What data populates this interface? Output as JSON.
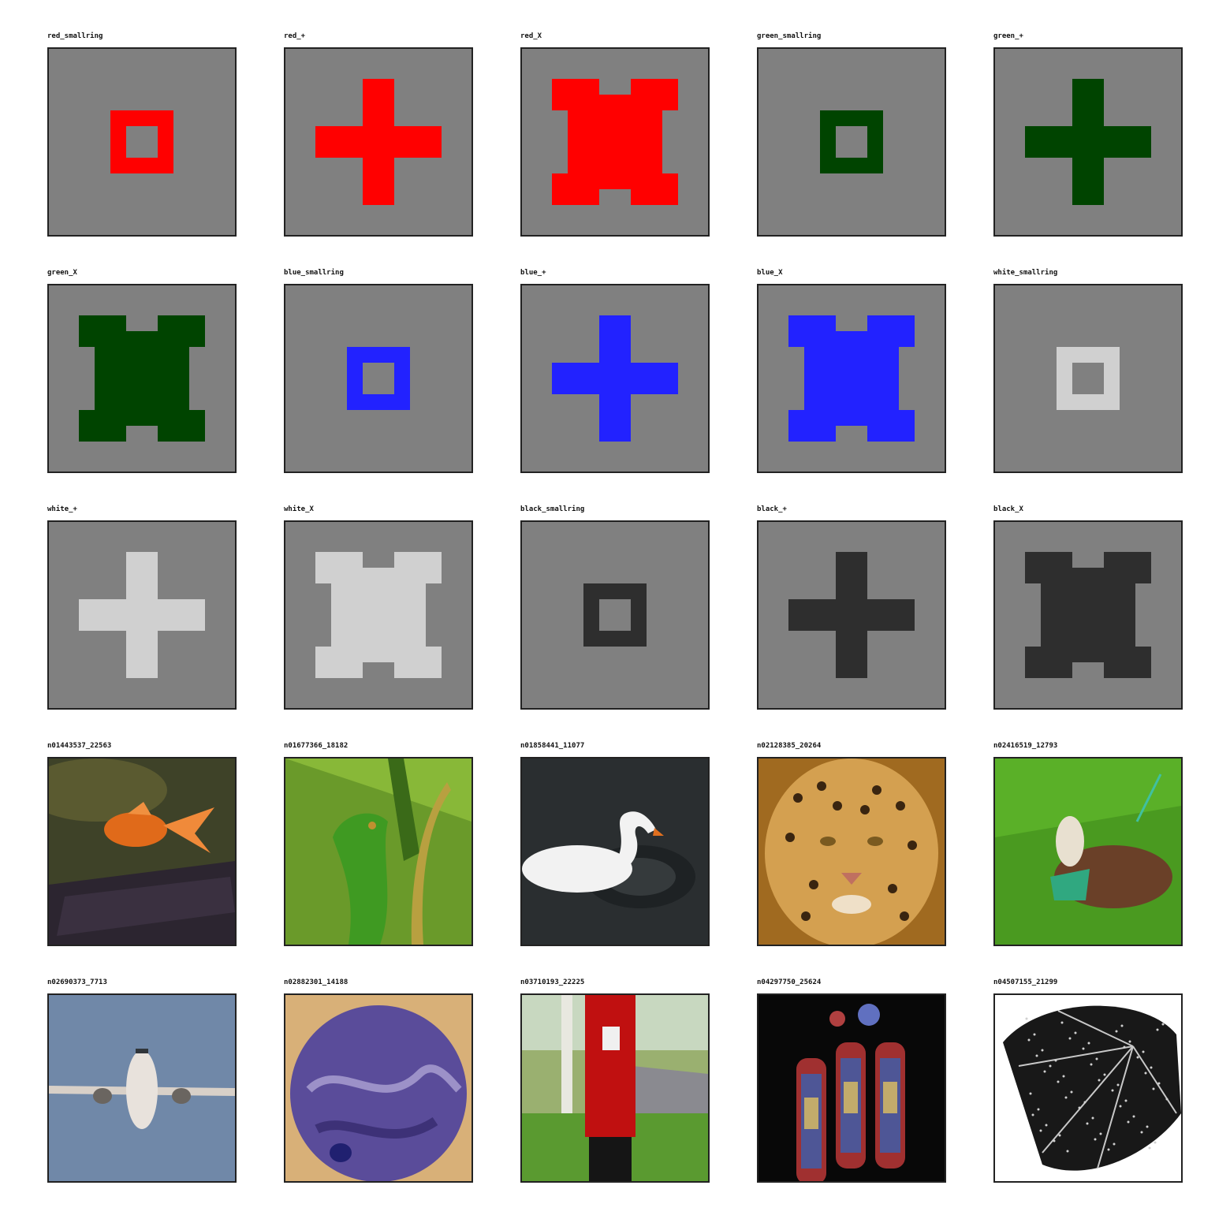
{
  "background_color": "#808080",
  "colors": {
    "red": "#ff0000",
    "green": "#004400",
    "blue": "#2222ff",
    "white": "#d0d0d0",
    "black": "#2e2e2e"
  },
  "shape_tiles": [
    {
      "label": "red_smallring",
      "color": "red",
      "shape": "smallring"
    },
    {
      "label": "red_+",
      "color": "red",
      "shape": "plus"
    },
    {
      "label": "red_X",
      "color": "red",
      "shape": "x"
    },
    {
      "label": "green_smallring",
      "color": "green",
      "shape": "smallring"
    },
    {
      "label": "green_+",
      "color": "green",
      "shape": "plus"
    },
    {
      "label": "green_X",
      "color": "green",
      "shape": "x"
    },
    {
      "label": "blue_smallring",
      "color": "blue",
      "shape": "smallring"
    },
    {
      "label": "blue_+",
      "color": "blue",
      "shape": "plus"
    },
    {
      "label": "blue_X",
      "color": "blue",
      "shape": "x"
    },
    {
      "label": "white_smallring",
      "color": "white",
      "shape": "smallring"
    },
    {
      "label": "white_+",
      "color": "white",
      "shape": "plus"
    },
    {
      "label": "white_X",
      "color": "white",
      "shape": "x"
    },
    {
      "label": "black_smallring",
      "color": "black",
      "shape": "smallring"
    },
    {
      "label": "black_+",
      "color": "black",
      "shape": "plus"
    },
    {
      "label": "black_X",
      "color": "black",
      "shape": "x"
    }
  ],
  "photo_tiles": [
    {
      "label": "n01443537_22563",
      "subject": "goldfish"
    },
    {
      "label": "n01677366_18182",
      "subject": "green iguana"
    },
    {
      "label": "n01858441_11077",
      "subject": "white swan"
    },
    {
      "label": "n02128385_20264",
      "subject": "leopard"
    },
    {
      "label": "n02416519_12793",
      "subject": "goat"
    },
    {
      "label": "n02690373_7713",
      "subject": "airliner"
    },
    {
      "label": "n02882301_14188",
      "subject": "bowling ball"
    },
    {
      "label": "n03710193_22225",
      "subject": "post box"
    },
    {
      "label": "n04297750_25624",
      "subject": "stained glass window"
    },
    {
      "label": "n04507155_21299",
      "subject": "umbrella"
    }
  ]
}
